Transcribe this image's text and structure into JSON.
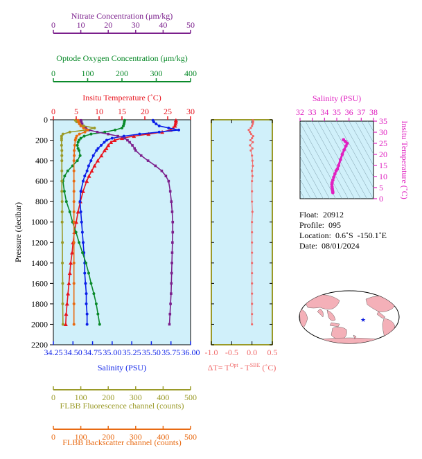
{
  "chart_data": [
    {
      "type": "line",
      "panel": "main profile",
      "ylabel": "Pressure (decibar)",
      "y_ticks": [
        0,
        200,
        400,
        600,
        800,
        1000,
        1200,
        1400,
        1600,
        1800,
        2000,
        2200
      ],
      "ylim": [
        2200,
        0
      ],
      "grid": false,
      "axes": [
        {
          "key": "nitrate",
          "label": "Nitrate Concentration (μm/kg)",
          "ticks": [
            0,
            10,
            20,
            30,
            40,
            50
          ],
          "range": [
            0,
            50
          ],
          "color": "#7b1f8c",
          "position": "top"
        },
        {
          "key": "oxygen",
          "label": "Optode Oxygen Concentration (μm/kg)",
          "ticks": [
            0,
            100,
            200,
            300,
            400
          ],
          "range": [
            0,
            400
          ],
          "color": "#0a8a2a",
          "position": "top"
        },
        {
          "key": "temperature",
          "label": "Insitu Temperature (˚C)",
          "ticks": [
            0,
            5,
            10,
            15,
            20,
            25,
            30
          ],
          "range": [
            0,
            30
          ],
          "color": "#e8141e",
          "position": "top"
        },
        {
          "key": "salinity",
          "label": "Salinity (PSU)",
          "ticks": [
            "34.25",
            "34.50",
            "34.75",
            "35.00",
            "35.25",
            "35.50",
            "35.75",
            "36.00"
          ],
          "range": [
            34.25,
            36.0
          ],
          "color": "#0a1ee8",
          "position": "bottom"
        },
        {
          "key": "fluorescence",
          "label": "FLBB Fluorescence channel (counts)",
          "ticks": [
            0,
            100,
            200,
            300,
            400,
            500
          ],
          "range": [
            0,
            500
          ],
          "color": "#9a9a28",
          "position": "bottom"
        },
        {
          "key": "backscatter",
          "label": "FLBB Backscatter channel (counts)",
          "ticks": [
            0,
            100,
            200,
            300,
            400,
            500
          ],
          "range": [
            0,
            500
          ],
          "color": "#e86a12",
          "position": "bottom"
        }
      ],
      "series": [
        {
          "axis": "temperature",
          "color": "#e8141e",
          "pressure": [
            5,
            20,
            40,
            60,
            80,
            100,
            120,
            140,
            160,
            180,
            200,
            220,
            250,
            280,
            300,
            350,
            400,
            450,
            500,
            550,
            600,
            700,
            800,
            900,
            1000,
            1100,
            1200,
            1300,
            1400,
            1500,
            1600,
            1700,
            1800,
            1900,
            2000
          ],
          "values": [
            26.8,
            26.8,
            26.7,
            26.6,
            26.2,
            25.6,
            23.8,
            20.8,
            17.6,
            15.0,
            13.4,
            12.6,
            12.0,
            11.6,
            11.2,
            10.5,
            9.7,
            9.0,
            8.4,
            7.8,
            7.3,
            6.5,
            5.9,
            5.4,
            5.0,
            4.6,
            4.3,
            4.1,
            3.8,
            3.6,
            3.4,
            3.2,
            3.0,
            2.8,
            2.7
          ]
        },
        {
          "axis": "salinity",
          "color": "#0a1ee8",
          "pressure": [
            5,
            20,
            40,
            60,
            80,
            100,
            120,
            140,
            160,
            180,
            200,
            220,
            250,
            280,
            300,
            350,
            400,
            450,
            500,
            550,
            600,
            700,
            800,
            900,
            1000,
            1100,
            1200,
            1300,
            1400,
            1500,
            1600,
            1700,
            1800,
            1900,
            2000
          ],
          "values": [
            35.52,
            35.53,
            35.56,
            35.6,
            35.72,
            35.85,
            35.6,
            35.35,
            35.15,
            35.0,
            34.93,
            34.9,
            34.86,
            34.82,
            34.8,
            34.76,
            34.73,
            34.7,
            34.68,
            34.65,
            34.63,
            34.6,
            34.59,
            34.6,
            34.61,
            34.62,
            34.63,
            34.64,
            34.65,
            34.65,
            34.66,
            34.67,
            34.67,
            34.68,
            34.68
          ]
        },
        {
          "axis": "oxygen",
          "color": "#0a8a2a",
          "pressure": [
            5,
            20,
            40,
            60,
            80,
            100,
            120,
            140,
            160,
            180,
            200,
            220,
            250,
            280,
            300,
            350,
            400,
            450,
            500,
            550,
            600,
            700,
            800,
            900,
            1000,
            1100,
            1200,
            1300,
            1400,
            1500,
            1600,
            1700,
            1800,
            1900,
            2000
          ],
          "values": [
            208,
            207,
            206,
            204,
            200,
            180,
            150,
            110,
            90,
            80,
            75,
            72,
            70,
            72,
            75,
            78,
            70,
            56,
            42,
            33,
            28,
            32,
            38,
            48,
            56,
            66,
            75,
            85,
            95,
            103,
            110,
            118,
            125,
            130,
            135
          ]
        },
        {
          "axis": "nitrate",
          "color": "#7b1f8c",
          "pressure": [
            5,
            20,
            40,
            60,
            80,
            100,
            120,
            140,
            160,
            180,
            200,
            220,
            250,
            280,
            300,
            350,
            400,
            450,
            500,
            550,
            600,
            700,
            800,
            900,
            1000,
            1100,
            1200,
            1300,
            1400,
            1500,
            1600,
            1700,
            1800,
            1900,
            2000
          ],
          "values": [
            10.0,
            10.2,
            10.5,
            11.0,
            11.8,
            13.0,
            16.0,
            20.0,
            23.5,
            26.0,
            27.0,
            27.8,
            28.8,
            29.6,
            30.0,
            32.0,
            34.5,
            37.2,
            39.5,
            41.0,
            42.0,
            42.6,
            43.0,
            43.3,
            43.5,
            43.5,
            43.4,
            43.3,
            43.2,
            43.1,
            43.0,
            42.9,
            42.7,
            42.5,
            42.3
          ]
        },
        {
          "axis": "fluorescence",
          "color": "#9a9a28",
          "pressure": [
            5,
            20,
            40,
            60,
            80,
            100,
            120,
            140,
            160,
            180,
            200,
            250,
            300,
            350,
            400,
            500,
            600,
            700,
            800,
            900,
            1000,
            1200,
            1400,
            1600,
            1800,
            2000
          ],
          "values": [
            80,
            85,
            95,
            110,
            150,
            120,
            60,
            35,
            30,
            30,
            30,
            30,
            31,
            31,
            31,
            31,
            31,
            31,
            32,
            32,
            32,
            33,
            33,
            34,
            34,
            35
          ]
        },
        {
          "axis": "backscatter",
          "color": "#e86a12",
          "pressure": [
            5,
            20,
            40,
            60,
            80,
            100,
            120,
            140,
            160,
            180,
            200,
            250,
            300,
            350,
            400,
            500,
            600,
            700,
            800,
            900,
            1000,
            1200,
            1400,
            1600,
            1800,
            2000
          ],
          "values": [
            90,
            92,
            95,
            100,
            110,
            125,
            115,
            95,
            85,
            82,
            80,
            78,
            76,
            76,
            75,
            75,
            75,
            75,
            75,
            75,
            75,
            75,
            75,
            75,
            75,
            75
          ]
        }
      ]
    },
    {
      "type": "scatter",
      "panel": "temperature difference",
      "xlabel": "ΔT= T",
      "xlabel_sup1": "Opt",
      "xlabel_mid": " - T",
      "xlabel_sup2": "SBE",
      "xlabel_end": " (˚C)",
      "x_ticks": [
        "-1.0",
        "-0.5",
        "0.0",
        "0.5"
      ],
      "xlim": [
        -1.0,
        0.5
      ],
      "color": "#f06a6a",
      "pressure": [
        5,
        20,
        40,
        60,
        80,
        100,
        120,
        140,
        160,
        180,
        200,
        220,
        250,
        280,
        300,
        350,
        400,
        450,
        500,
        550,
        600,
        700,
        800,
        900,
        1000,
        1100,
        1200,
        1300,
        1400,
        1500,
        1600,
        1700,
        1800,
        1900,
        2000
      ],
      "values": [
        0.02,
        0.03,
        0.02,
        0.0,
        -0.03,
        -0.08,
        -0.05,
        -0.02,
        0.03,
        0.0,
        -0.04,
        0.02,
        -0.05,
        0.01,
        -0.03,
        0.0,
        0.01,
        0.02,
        0.0,
        0.01,
        0.0,
        0.0,
        0.0,
        0.01,
        0.0,
        0.0,
        0.0,
        0.0,
        0.0,
        0.0,
        0.0,
        0.0,
        0.0,
        0.0,
        0.0
      ]
    },
    {
      "type": "line",
      "panel": "T-S diagram",
      "xlabel": "Salinity (PSU)",
      "ylabel": "Insitu Temperature (˚C)",
      "x_ticks": [
        32,
        33,
        34,
        35,
        36,
        37,
        38
      ],
      "y_ticks": [
        0,
        5,
        10,
        15,
        20,
        25,
        30,
        35
      ],
      "xlim": [
        32,
        38
      ],
      "ylim": [
        0,
        35
      ],
      "color": "#e020c0",
      "salinity": [
        34.68,
        34.67,
        34.65,
        34.63,
        34.61,
        34.6,
        34.62,
        34.68,
        34.75,
        34.85,
        34.95,
        35.05,
        35.15,
        35.3,
        35.45,
        35.6,
        35.75,
        35.85,
        35.7,
        35.55
      ],
      "temperature": [
        2.7,
        3.2,
        3.8,
        4.6,
        5.4,
        6.5,
        7.3,
        8.4,
        9.7,
        11.2,
        12.6,
        13.4,
        15.0,
        17.6,
        20.0,
        22.0,
        23.8,
        25.0,
        25.8,
        26.6
      ]
    }
  ],
  "info": {
    "float": "Float:  20912",
    "profile": "Profile:  095",
    "location": "Location:  0.6˚S  -150.1˚E",
    "date": "Date:  08/01/2024"
  },
  "map": {
    "land_color": "#f4b0b8",
    "ocean_color": "#ffffff",
    "marker_color": "#1020e0"
  }
}
